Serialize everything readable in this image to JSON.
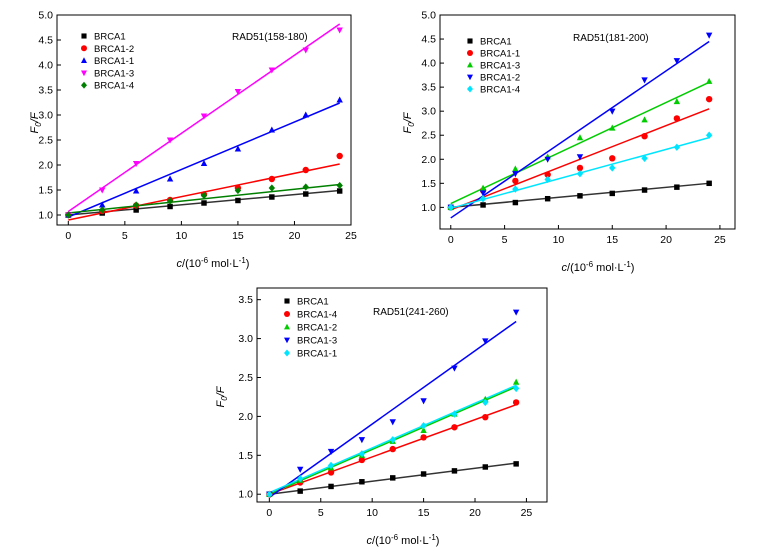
{
  "chart_data": [
    {
      "type": "scatter",
      "title": "RAD51(158-180)",
      "xlabel_italic": "c",
      "xlabel_rest": "/(10",
      "xlabel_sup": "-6",
      "xlabel_end": " mol·L",
      "xlabel_sup2": "-1",
      "xlabel_close": ")",
      "ylabel_F": "F",
      "ylabel_sub": "0",
      "ylabel_end": "/F",
      "xlim": [
        -1,
        25
      ],
      "ylim": [
        0.8,
        5.0
      ],
      "xticks": [
        0,
        5,
        10,
        15,
        20,
        25
      ],
      "yticks": [
        1.0,
        1.5,
        2.0,
        2.5,
        3.0,
        3.5,
        4.0,
        4.5,
        5.0
      ],
      "legend_position": "top-left",
      "x": [
        0,
        3,
        6,
        9,
        12,
        15,
        18,
        21,
        24
      ],
      "series": [
        {
          "name": "BRCA1",
          "marker": "square",
          "color": "#000000",
          "values": [
            1.0,
            1.04,
            1.1,
            1.17,
            1.24,
            1.29,
            1.36,
            1.42,
            1.48
          ],
          "fit": [
            1.0,
            1.49
          ]
        },
        {
          "name": "BRCA1-2",
          "marker": "circle",
          "color": "#ff0000",
          "values": [
            1.0,
            1.08,
            1.19,
            1.3,
            1.41,
            1.54,
            1.72,
            1.9,
            2.18
          ],
          "fit": [
            0.9,
            2.02
          ]
        },
        {
          "name": "BRCA1-1",
          "marker": "triangle-up",
          "color": "#0000ff",
          "values": [
            1.0,
            1.2,
            1.48,
            1.72,
            2.03,
            2.32,
            2.7,
            3.0,
            3.3
          ],
          "fit": [
            0.96,
            3.24
          ]
        },
        {
          "name": "BRCA1-3",
          "marker": "triangle-down",
          "color": "#ff00ff",
          "values": [
            1.0,
            1.5,
            2.03,
            2.5,
            2.98,
            3.47,
            3.9,
            4.3,
            4.7
          ],
          "fit": [
            1.07,
            4.82
          ]
        },
        {
          "name": "BRCA1-4",
          "marker": "diamond",
          "color": "#008000",
          "values": [
            1.0,
            1.1,
            1.2,
            1.28,
            1.39,
            1.49,
            1.54,
            1.56,
            1.59
          ],
          "fit": [
            1.04,
            1.61
          ]
        }
      ]
    },
    {
      "type": "scatter",
      "title": "RAD51(181-200)",
      "xlabel_italic": "c",
      "xlabel_rest": "/(10",
      "xlabel_sup": "-6",
      "xlabel_end": " mol·L",
      "xlabel_sup2": "-1",
      "xlabel_close": ")",
      "ylabel_F": "F",
      "ylabel_sub": "0",
      "ylabel_end": "/F",
      "xlim": [
        -1,
        26.4
      ],
      "ylim": [
        0.55,
        5.0
      ],
      "xticks": [
        0,
        5,
        10,
        15,
        20,
        25
      ],
      "yticks": [
        1.0,
        1.5,
        2.0,
        2.5,
        3.0,
        3.5,
        4.0,
        4.5,
        5.0
      ],
      "legend_position": "top-left",
      "x": [
        0,
        3,
        6,
        9,
        12,
        15,
        18,
        21,
        24
      ],
      "series": [
        {
          "name": "BRCA1",
          "marker": "square",
          "color": "#000000",
          "values": [
            1.0,
            1.05,
            1.1,
            1.18,
            1.24,
            1.29,
            1.36,
            1.42,
            1.5
          ],
          "fit": [
            1.0,
            1.5
          ]
        },
        {
          "name": "BRCA1-1",
          "marker": "circle",
          "color": "#ff0000",
          "values": [
            1.0,
            1.35,
            1.55,
            1.68,
            1.82,
            2.02,
            2.48,
            2.85,
            3.25
          ],
          "fit": [
            0.95,
            3.05
          ]
        },
        {
          "name": "BRCA1-3",
          "marker": "triangle-up",
          "color": "#00cc00",
          "values": [
            1.0,
            1.4,
            1.8,
            2.05,
            2.45,
            2.65,
            2.82,
            3.2,
            3.62
          ],
          "fit": [
            1.08,
            3.6
          ]
        },
        {
          "name": "BRCA1-2",
          "marker": "triangle-down",
          "color": "#0000ff",
          "values": [
            1.0,
            1.3,
            1.7,
            2.0,
            2.05,
            3.0,
            3.65,
            4.05,
            4.58
          ],
          "fit": [
            0.78,
            4.45
          ]
        },
        {
          "name": "BRCA1-4",
          "marker": "diamond",
          "color": "#00e5ff",
          "values": [
            1.0,
            1.18,
            1.38,
            1.58,
            1.7,
            1.82,
            2.02,
            2.25,
            2.5
          ],
          "fit": [
            0.98,
            2.45
          ]
        }
      ]
    },
    {
      "type": "scatter",
      "title": "RAD51(241-260)",
      "xlabel_italic": "c",
      "xlabel_rest": "/(10",
      "xlabel_sup": "-6",
      "xlabel_end": " mol·L",
      "xlabel_sup2": "-1",
      "xlabel_close": ")",
      "ylabel_F": "F",
      "ylabel_sub": "0",
      "ylabel_end": "/F",
      "xlim": [
        -1.2,
        27
      ],
      "ylim": [
        0.9,
        3.65
      ],
      "xticks": [
        0,
        5,
        10,
        15,
        20,
        25
      ],
      "yticks": [
        1.0,
        1.5,
        2.0,
        2.5,
        3.0,
        3.5
      ],
      "legend_position": "top-left",
      "x": [
        0,
        3,
        6,
        9,
        12,
        15,
        18,
        21,
        24
      ],
      "series": [
        {
          "name": "BRCA1",
          "marker": "square",
          "color": "#000000",
          "values": [
            1.0,
            1.04,
            1.1,
            1.16,
            1.21,
            1.26,
            1.3,
            1.35,
            1.39
          ],
          "fit": [
            1.0,
            1.4
          ]
        },
        {
          "name": "BRCA1-4",
          "marker": "circle",
          "color": "#ff0000",
          "values": [
            1.0,
            1.15,
            1.28,
            1.44,
            1.58,
            1.73,
            1.86,
            1.99,
            2.18
          ],
          "fit": [
            1.0,
            2.15
          ]
        },
        {
          "name": "BRCA1-2",
          "marker": "triangle-up",
          "color": "#00cc00",
          "values": [
            1.0,
            1.18,
            1.34,
            1.5,
            1.68,
            1.82,
            2.03,
            2.22,
            2.44
          ],
          "fit": [
            1.0,
            2.38
          ]
        },
        {
          "name": "BRCA1-3",
          "marker": "triangle-down",
          "color": "#0000ff",
          "values": [
            1.0,
            1.32,
            1.55,
            1.7,
            1.93,
            2.2,
            2.62,
            2.97,
            3.34
          ],
          "fit": [
            0.96,
            3.22
          ]
        },
        {
          "name": "BRCA1-1",
          "marker": "diamond",
          "color": "#00e5ff",
          "values": [
            1.0,
            1.2,
            1.37,
            1.52,
            1.7,
            1.88,
            2.03,
            2.18,
            2.36
          ],
          "fit": [
            1.02,
            2.4
          ]
        }
      ]
    }
  ]
}
